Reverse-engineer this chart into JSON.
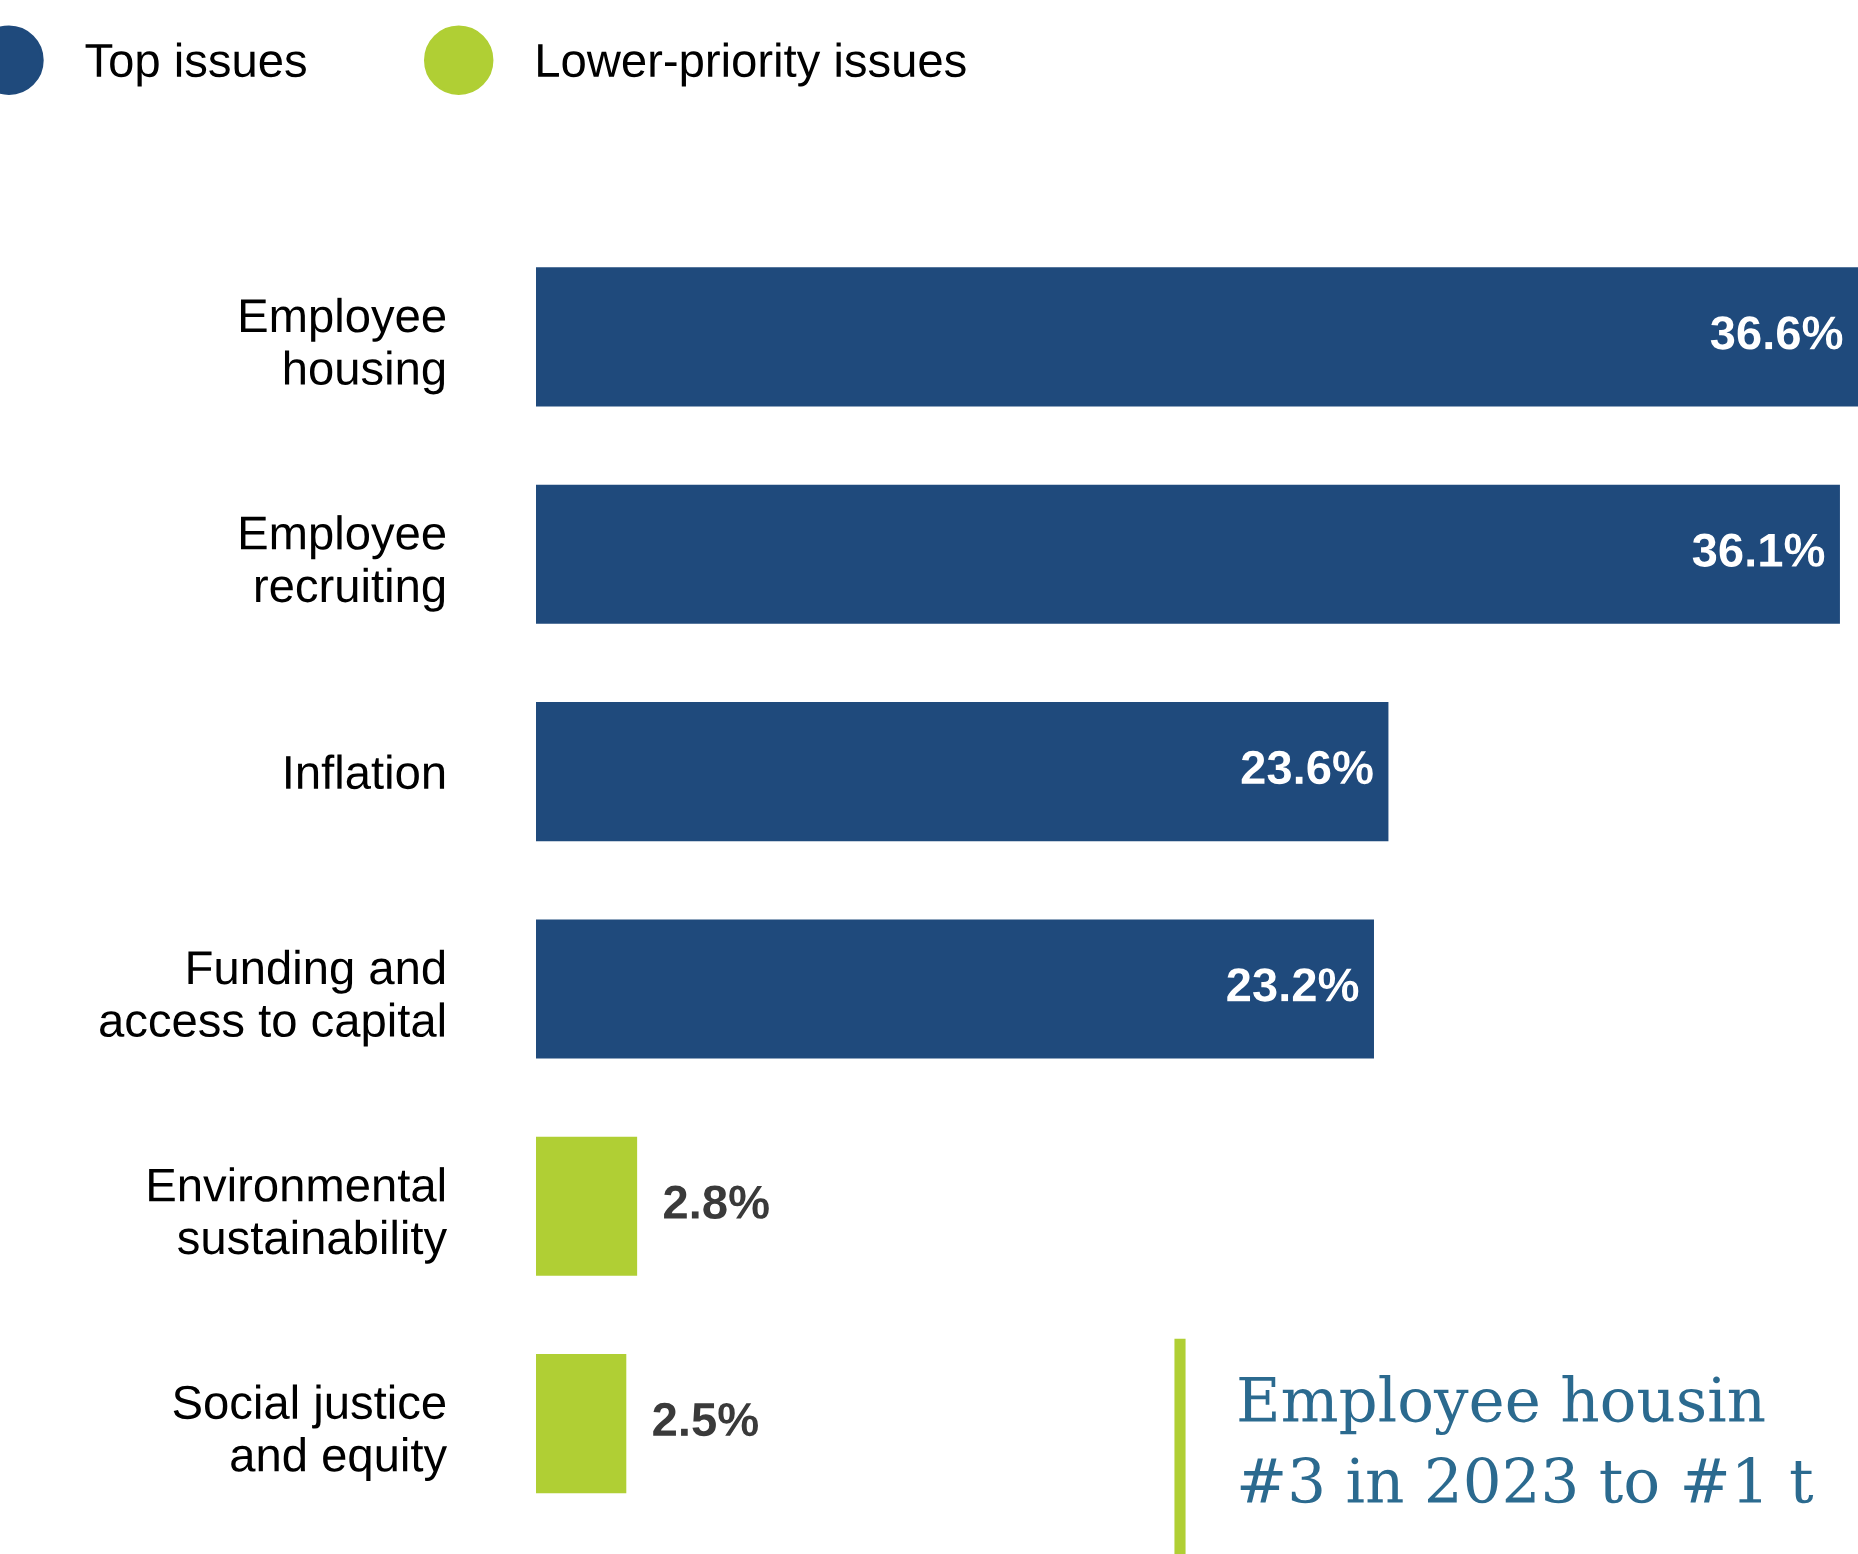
{
  "chart_data": {
    "type": "bar",
    "orientation": "horizontal",
    "categories": [
      "Employee\nhousing",
      "Employee\nrecruiting",
      "Inflation",
      "Funding and\naccess to capital",
      "Environmental\nsustainability",
      "Social justice\nand equity"
    ],
    "series": [
      {
        "name": "Top issues",
        "color": "#1f4a7c",
        "values": [
          36.6,
          36.1,
          23.6,
          23.2,
          null,
          null
        ],
        "value_labels": [
          "36.6%",
          "36.1%",
          "23.6%",
          "23.2%",
          null,
          null
        ]
      },
      {
        "name": "Lower-priority issues",
        "color": "#b0cf34",
        "values": [
          null,
          null,
          null,
          null,
          2.8,
          2.5
        ],
        "value_labels": [
          null,
          null,
          null,
          null,
          "2.8%",
          "2.5%"
        ]
      }
    ],
    "legend": "top",
    "grid": false,
    "annotations": [
      "Employee housin\n#3 in 2023 to #1 t"
    ]
  }
}
